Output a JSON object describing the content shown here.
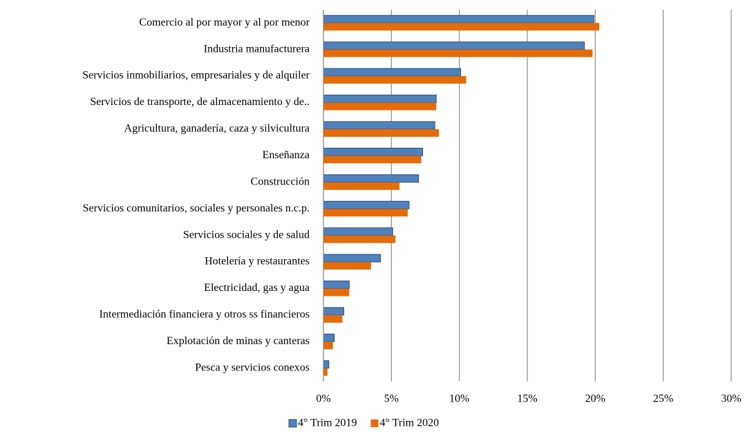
{
  "chart_data": {
    "type": "hbar",
    "categories": [
      "Comercio al por mayor y al por menor",
      "Industria manufacturera",
      "Servicios inmobiliarios, empresariales y de alquiler",
      "Servicios de transporte, de almacenamiento y de..",
      "Agricultura, ganadería, caza y silvicultura",
      "Enseñanza",
      "Construcción",
      "Servicios comunitarios, sociales y personales n.c.p.",
      "Servicios sociales y de salud",
      "Hotelería y restaurantes",
      "Electricidad, gas y agua",
      "Intermediación financiera y otros ss financieros",
      "Explotación de minas y canteras",
      "Pesca y servicios conexos"
    ],
    "series": [
      {
        "name": "4° Trim 2019",
        "color": "#4f81bd",
        "values": [
          19.9,
          19.2,
          10.1,
          8.3,
          8.2,
          7.3,
          7.0,
          6.3,
          5.1,
          4.2,
          1.9,
          1.5,
          0.8,
          0.4
        ]
      },
      {
        "name": "4° Trim 2020",
        "color": "#e46c0a",
        "values": [
          20.3,
          19.8,
          10.5,
          8.3,
          8.5,
          7.2,
          5.6,
          6.2,
          5.3,
          3.5,
          1.9,
          1.4,
          0.7,
          0.3
        ]
      }
    ],
    "xlim": [
      0,
      30
    ],
    "xticks": [
      {
        "value": 0,
        "label": "0%"
      },
      {
        "value": 5,
        "label": "5%"
      },
      {
        "value": 10,
        "label": "10%"
      },
      {
        "value": 15,
        "label": "15%"
      },
      {
        "value": 20,
        "label": "20%"
      },
      {
        "value": 25,
        "label": "25%"
      },
      {
        "value": 30,
        "label": "30%"
      }
    ],
    "grid": true,
    "legend": "bottom"
  }
}
